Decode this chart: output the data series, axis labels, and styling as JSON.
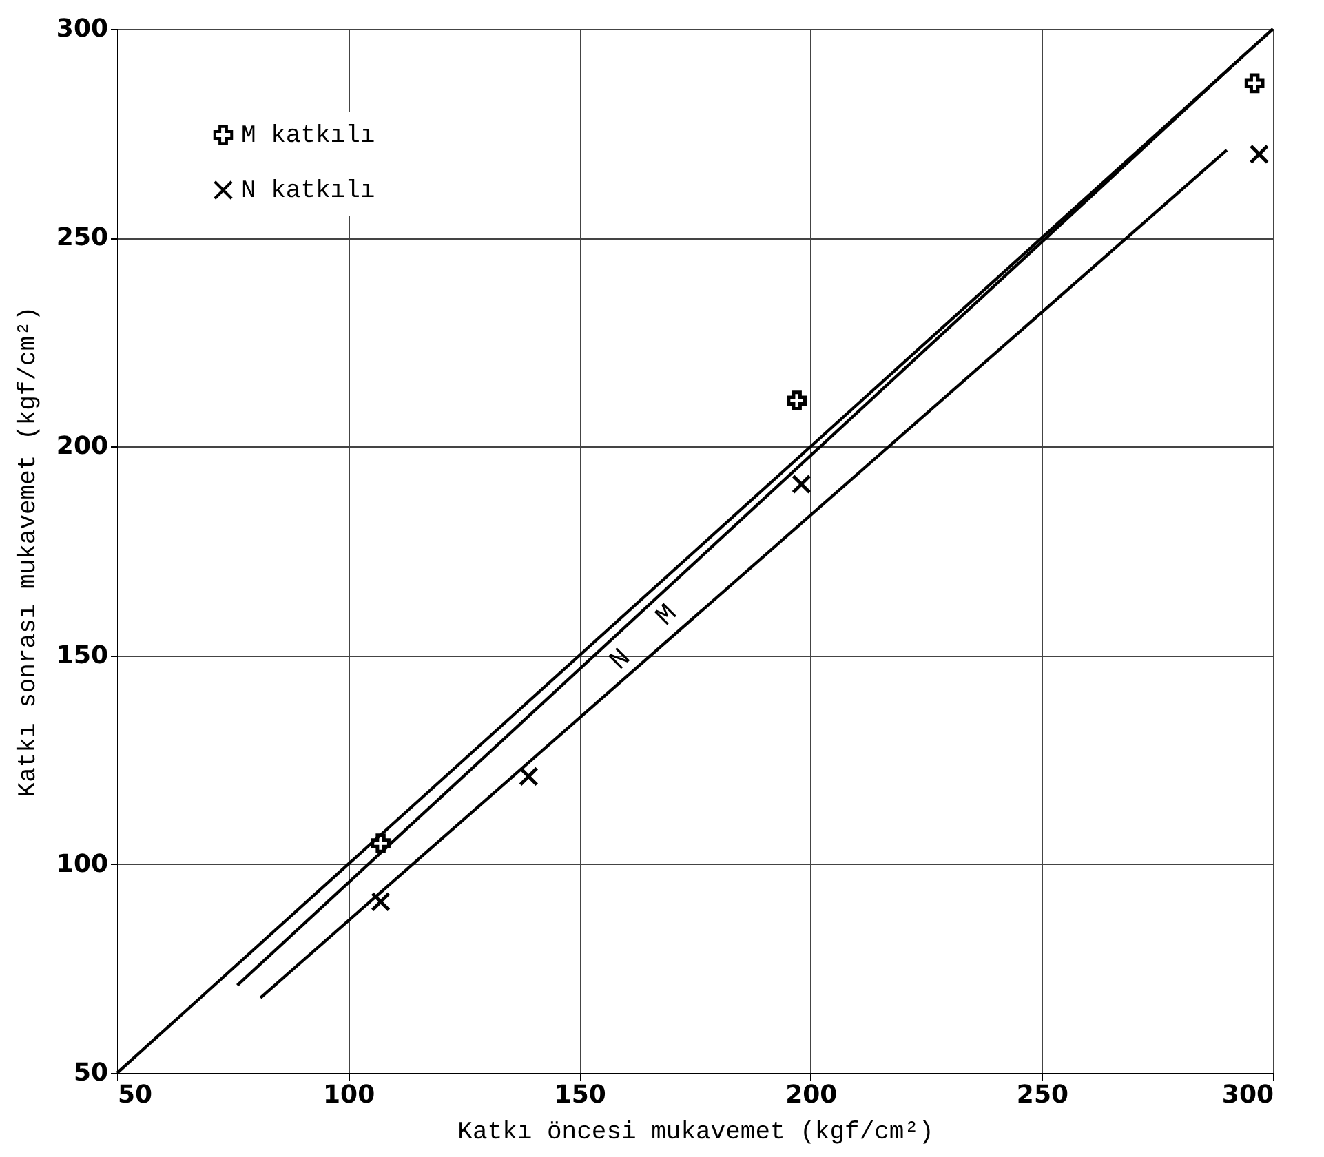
{
  "chart_data": {
    "type": "scatter",
    "xlabel": "Katkı öncesi mukavemet (kgf/cm²)",
    "ylabel": "Katkı sonrası mukavemet (kgf/cm²)",
    "xlim": [
      50,
      300
    ],
    "ylim": [
      50,
      300
    ],
    "xticks": [
      50,
      100,
      150,
      200,
      250,
      300
    ],
    "yticks": [
      50,
      100,
      150,
      200,
      250,
      300
    ],
    "grid": true,
    "legend": "top left",
    "series": [
      {
        "name": "M katkılı",
        "marker": "cross",
        "color": "#000000",
        "x": [
          107,
          197,
          296
        ],
        "values": [
          105,
          211,
          287
        ]
      },
      {
        "name": "N katkılı",
        "marker": "x",
        "color": "#000000",
        "x": [
          107,
          139,
          198,
          297
        ],
        "values": [
          91,
          121,
          191,
          270
        ]
      },
      {
        "type": "line",
        "color": "#000000",
        "x": [
          50,
          300
        ],
        "values": [
          50,
          300
        ]
      },
      {
        "name": "M",
        "type": "line",
        "color": "#000000",
        "x": [
          76,
          293
        ],
        "values": [
          71,
          293
        ]
      },
      {
        "name": "N",
        "type": "line",
        "color": "#000000",
        "x": [
          81,
          290
        ],
        "values": [
          68,
          271
        ]
      }
    ]
  }
}
